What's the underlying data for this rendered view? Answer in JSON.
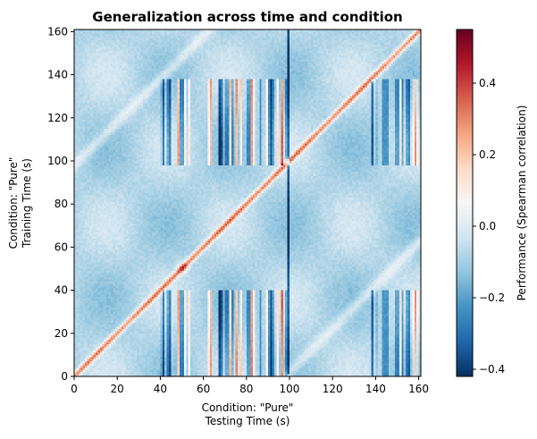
{
  "chart_data": {
    "type": "heatmap",
    "title": "Generalization across time and condition",
    "xlabel": "Condition: \"Pure\"\nTesting Time (s)",
    "ylabel": "Condition: \"Pure\"\nTraining Time (s)",
    "xlim": [
      0,
      161
    ],
    "ylim": [
      0,
      161
    ],
    "xticks": [
      0,
      20,
      40,
      60,
      80,
      100,
      120,
      140,
      160
    ],
    "yticks": [
      0,
      20,
      40,
      60,
      80,
      100,
      120,
      140,
      160
    ],
    "colorbar": {
      "label": "Performance (Spearman correlation)",
      "vmin": -0.42,
      "vmax": 0.55,
      "ticks": [
        -0.4,
        -0.2,
        0.0,
        0.2,
        0.4
      ],
      "colormap": "RdBu_r"
    },
    "description_values": {
      "diagonal_value": 0.38,
      "diagonal_peak_near": [
        50,
        50
      ],
      "secondary_diagonal_value": 0.1,
      "background_value": -0.08,
      "striped_column_bands": [
        [
          40,
          54
        ],
        [
          62,
          100
        ],
        [
          138,
          160
        ]
      ],
      "striped_row_bands": [
        [
          0,
          40
        ],
        [
          98,
          138
        ]
      ]
    },
    "colors": {
      "min": "#053061",
      "neutral": "#f7f7f7",
      "max": "#67001f"
    }
  }
}
